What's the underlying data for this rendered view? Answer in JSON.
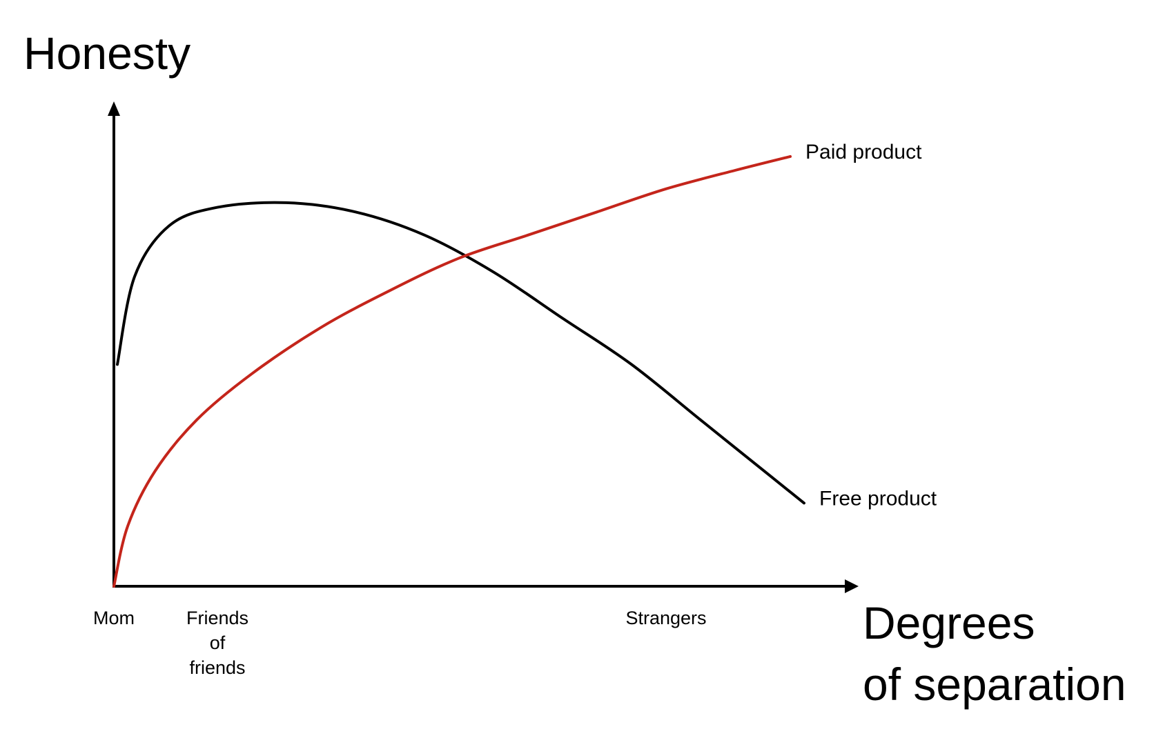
{
  "chart_data": {
    "type": "line",
    "title": "",
    "ylabel": "Honesty",
    "xlabel": "Degrees of separation",
    "xlabel_lines": [
      "Degrees",
      "of separation"
    ],
    "x_ticks": [
      {
        "x": 0,
        "lines": [
          "Mom"
        ]
      },
      {
        "x": 1.5,
        "lines": [
          "Friends",
          "of",
          "friends"
        ]
      },
      {
        "x": 8,
        "lines": [
          "Strangers"
        ]
      }
    ],
    "xlim": [
      0,
      10.5
    ],
    "ylim": [
      0,
      10
    ],
    "grid": false,
    "axis_tick_numbers": false,
    "series": [
      {
        "name": "Free product",
        "color": "#000000",
        "points": [
          [
            0.05,
            4.8
          ],
          [
            0.3,
            6.7
          ],
          [
            0.8,
            7.8
          ],
          [
            1.5,
            8.2
          ],
          [
            2.5,
            8.3
          ],
          [
            3.5,
            8.1
          ],
          [
            4.5,
            7.6
          ],
          [
            5.5,
            6.8
          ],
          [
            6.5,
            5.8
          ],
          [
            7.5,
            4.8
          ],
          [
            8.5,
            3.6
          ],
          [
            9.5,
            2.4
          ],
          [
            10,
            1.8
          ]
        ]
      },
      {
        "name": "Paid product",
        "color": "#c4251b",
        "points": [
          [
            0,
            0
          ],
          [
            0.2,
            1.3
          ],
          [
            0.6,
            2.5
          ],
          [
            1.2,
            3.6
          ],
          [
            2,
            4.6
          ],
          [
            3,
            5.6
          ],
          [
            4,
            6.4
          ],
          [
            5,
            7.1
          ],
          [
            6,
            7.6
          ],
          [
            7,
            8.1
          ],
          [
            8,
            8.6
          ],
          [
            9,
            9.0
          ],
          [
            9.8,
            9.3
          ]
        ]
      }
    ]
  }
}
